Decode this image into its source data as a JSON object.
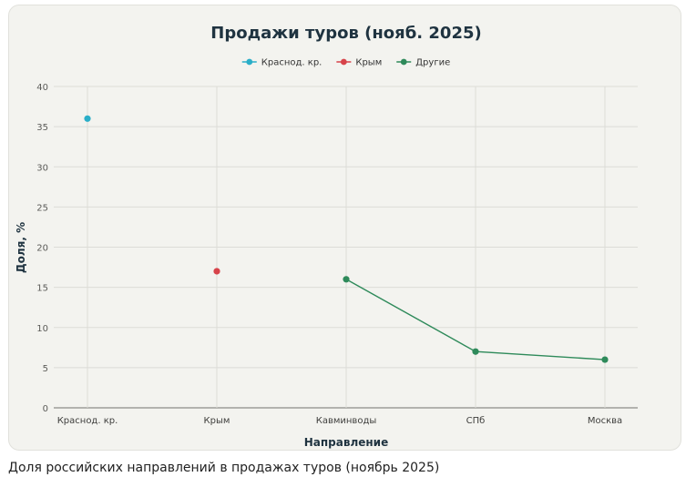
{
  "chart_data": {
    "type": "line",
    "title": "Продажи туров (нояб. 2025)",
    "xlabel": "Направление",
    "ylabel": "Доля, %",
    "categories": [
      "Краснод. кр.",
      "Крым",
      "Кавминводы",
      "СПб",
      "Москва"
    ],
    "ylim": [
      0,
      40
    ],
    "yticks": [
      0,
      5,
      10,
      15,
      20,
      25,
      30,
      35,
      40
    ],
    "grid": true,
    "legend_position": "top-center",
    "series": [
      {
        "name": "Краснод. кр.",
        "color": "#2aaec8",
        "points": [
          {
            "category": "Краснод. кр.",
            "value": 36
          }
        ]
      },
      {
        "name": "Крым",
        "color": "#d7434a",
        "points": [
          {
            "category": "Крым",
            "value": 17
          }
        ]
      },
      {
        "name": "Другие",
        "color": "#2e8a5a",
        "points": [
          {
            "category": "Кавминводы",
            "value": 16
          },
          {
            "category": "СПб",
            "value": 7
          },
          {
            "category": "Москва",
            "value": 6
          }
        ]
      }
    ]
  },
  "caption": "Доля российских направлений в продажах туров (ноябрь 2025)"
}
